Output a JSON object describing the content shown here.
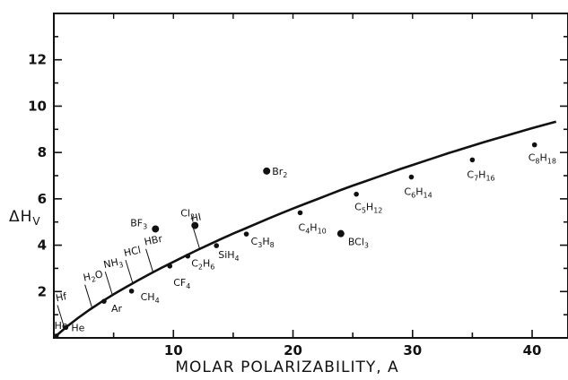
{
  "chart_data": {
    "type": "scatter",
    "title": "",
    "xlabel": "MOLAR POLARIZABILITY, A",
    "ylabel": "ΔH",
    "ylabel_sub": "V",
    "xlim": [
      0,
      43
    ],
    "ylim": [
      0,
      14
    ],
    "x_ticks": [
      10,
      20,
      30,
      40
    ],
    "y_ticks": [
      2,
      4,
      6,
      8,
      10,
      12
    ],
    "grid": false,
    "legend": "none",
    "colors": {
      "ink": "#111111",
      "background": "#ffffff"
    },
    "curve": {
      "x": [
        0,
        1,
        2,
        3,
        4,
        5,
        6,
        7,
        8,
        9,
        10,
        11,
        12,
        13,
        14,
        15,
        16,
        17,
        18,
        19,
        20,
        21,
        22,
        23,
        24,
        25,
        26,
        27,
        28,
        29,
        30,
        31,
        32,
        33,
        34,
        35,
        36,
        37,
        38,
        39,
        40,
        41,
        42
      ],
      "y": [
        0.0,
        0.45,
        0.85,
        1.22,
        1.56,
        1.88,
        2.18,
        2.47,
        2.75,
        3.02,
        3.28,
        3.54,
        3.79,
        4.03,
        4.27,
        4.5,
        4.72,
        4.94,
        5.16,
        5.37,
        5.58,
        5.78,
        5.98,
        6.18,
        6.38,
        6.57,
        6.75,
        6.93,
        7.11,
        7.29,
        7.46,
        7.63,
        7.8,
        7.97,
        8.13,
        8.29,
        8.45,
        8.6,
        8.75,
        8.9,
        9.05,
        9.19,
        9.33
      ]
    },
    "points": [
      {
        "label": "He",
        "sub": "",
        "x": 0.2,
        "y": 0.08,
        "size": "small"
      },
      {
        "label": "He",
        "sub": "",
        "x": 1.0,
        "y": 0.45,
        "size": "small"
      },
      {
        "label": "Ar",
        "sub": "",
        "x": 4.2,
        "y": 1.58,
        "size": "small"
      },
      {
        "label": "CH",
        "sub": "4",
        "x": 6.5,
        "y": 2.02,
        "size": "small"
      },
      {
        "label": "CF",
        "sub": "4",
        "x": 9.7,
        "y": 3.1,
        "size": "small"
      },
      {
        "label": "C",
        "sub": "2",
        "label2": "H",
        "sub2": "6",
        "x": 11.2,
        "y": 3.53,
        "size": "small"
      },
      {
        "label": "SiH",
        "sub": "4",
        "x": 13.6,
        "y": 3.98,
        "size": "small"
      },
      {
        "label": "C",
        "sub": "3",
        "label2": "H",
        "sub2": "8",
        "x": 16.1,
        "y": 4.48,
        "size": "small"
      },
      {
        "label": "C",
        "sub": "4",
        "label2": "H",
        "sub2": "10",
        "x": 20.6,
        "y": 5.4,
        "size": "small"
      },
      {
        "label": "C",
        "sub": "5",
        "label2": "H",
        "sub2": "12",
        "x": 25.3,
        "y": 6.2,
        "size": "small"
      },
      {
        "label": "C",
        "sub": "6",
        "label2": "H",
        "sub2": "14",
        "x": 29.9,
        "y": 6.94,
        "size": "small"
      },
      {
        "label": "C",
        "sub": "7",
        "label2": "H",
        "sub2": "16",
        "x": 35.0,
        "y": 7.68,
        "size": "small"
      },
      {
        "label": "C",
        "sub": "8",
        "label2": "H",
        "sub2": "18",
        "x": 40.2,
        "y": 8.33,
        "size": "small"
      },
      {
        "label": "BF",
        "sub": "3",
        "x": 8.5,
        "y": 4.7,
        "size": "large"
      },
      {
        "label": "Cl",
        "sub": "2",
        "x": 11.8,
        "y": 4.85,
        "size": "large"
      },
      {
        "label": "Br",
        "sub": "2",
        "x": 17.8,
        "y": 7.2,
        "size": "large"
      },
      {
        "label": "BCl",
        "sub": "3",
        "x": 24.0,
        "y": 4.5,
        "size": "large"
      }
    ],
    "curve_annotations": [
      {
        "label": "Hf",
        "sub": "",
        "x": 0.9
      },
      {
        "label": "H",
        "sub": "2",
        "label2": "O",
        "sub2": "",
        "x": 3.2
      },
      {
        "label": "NH",
        "sub": "3",
        "x": 4.9
      },
      {
        "label": "HCl",
        "sub": "",
        "x": 6.6
      },
      {
        "label": "HBr",
        "sub": "",
        "x": 8.3
      },
      {
        "label": "HI",
        "sub": "",
        "x": 12.2
      }
    ]
  }
}
